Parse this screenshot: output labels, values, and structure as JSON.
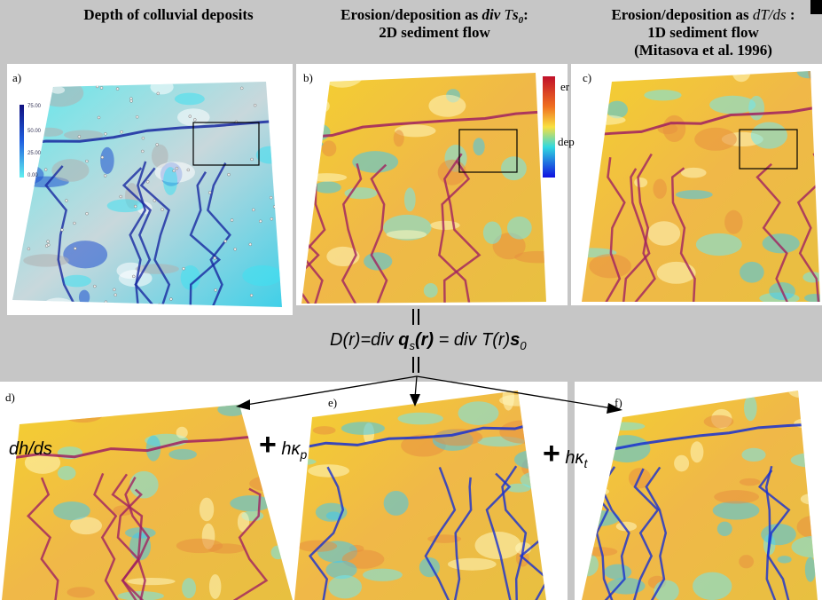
{
  "headers": [
    {
      "line1": "Depth of colluvial deposits"
    },
    {
      "line1": "Erosion/deposition as",
      "math": "div",
      "math2": "T",
      "math3": "s",
      "sub": "0",
      "end": ":",
      "line2": "2D sediment flow"
    },
    {
      "line1": "Erosion/deposition as",
      "math": "dT/ds",
      "end": ":",
      "line2": "1D sediment flow",
      "line3": "(Mitasova et al. 1996)"
    }
  ],
  "panels": [
    "a)",
    "b)",
    "c)",
    "d)",
    "e)",
    "f)"
  ],
  "depth_legend": [
    "75.00",
    "50.00",
    "25.00",
    "0.00"
  ],
  "flow_legend": {
    "top": "er",
    "bottom": "dep"
  },
  "equation": [
    "D(r)=div",
    "q",
    "s",
    "(r)",
    "= div",
    "T(r)",
    "s",
    "0"
  ],
  "terms": {
    "d": "dh/ds",
    "e_plus": "+",
    "e_h": "h",
    "e_k": "κ",
    "e_sub": "p",
    "f_plus": "+",
    "f_h": "h",
    "f_k": "κ",
    "f_sub": "t"
  }
}
